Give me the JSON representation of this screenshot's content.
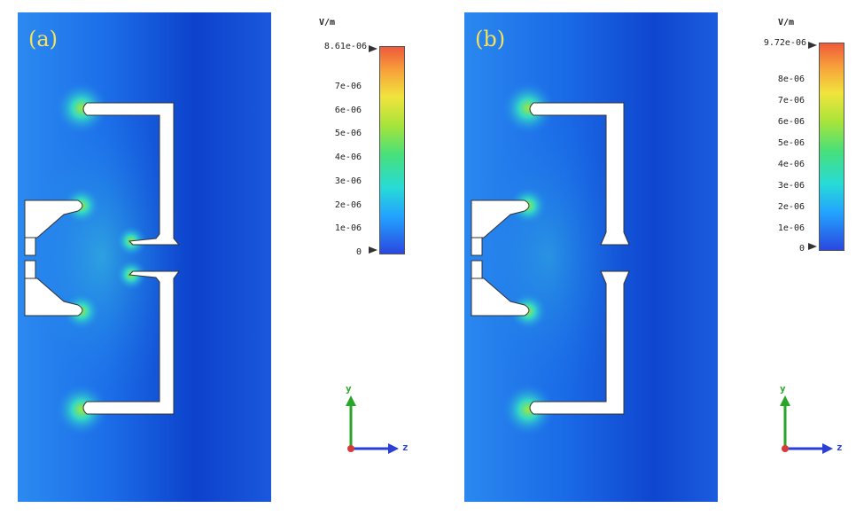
{
  "panels": [
    {
      "label": "(a)",
      "colorbar": {
        "unit": "V/m",
        "max_label": "8.61e-06",
        "ticks": [
          "7e-06",
          "6e-06",
          "5e-06",
          "4e-06",
          "3e-06",
          "2e-06",
          "1e-06",
          "0"
        ]
      },
      "axes": {
        "y": "y",
        "z": "z"
      }
    },
    {
      "label": "(b)",
      "colorbar": {
        "unit": "V/m",
        "max_label": "9.72e-06",
        "ticks": [
          "8e-06",
          "7e-06",
          "6e-06",
          "5e-06",
          "4e-06",
          "3e-06",
          "2e-06",
          "1e-06",
          "0"
        ]
      },
      "axes": {
        "y": "y",
        "z": "z"
      }
    }
  ],
  "colors": {
    "field_bg": "#1a5ce0",
    "field_low": "#0a33c8",
    "hot": "#46e07a",
    "metal": "#ffffff",
    "axis_y": "#2aa52a",
    "axis_z": "#2a3fd6",
    "origin": "#d63a3a"
  }
}
